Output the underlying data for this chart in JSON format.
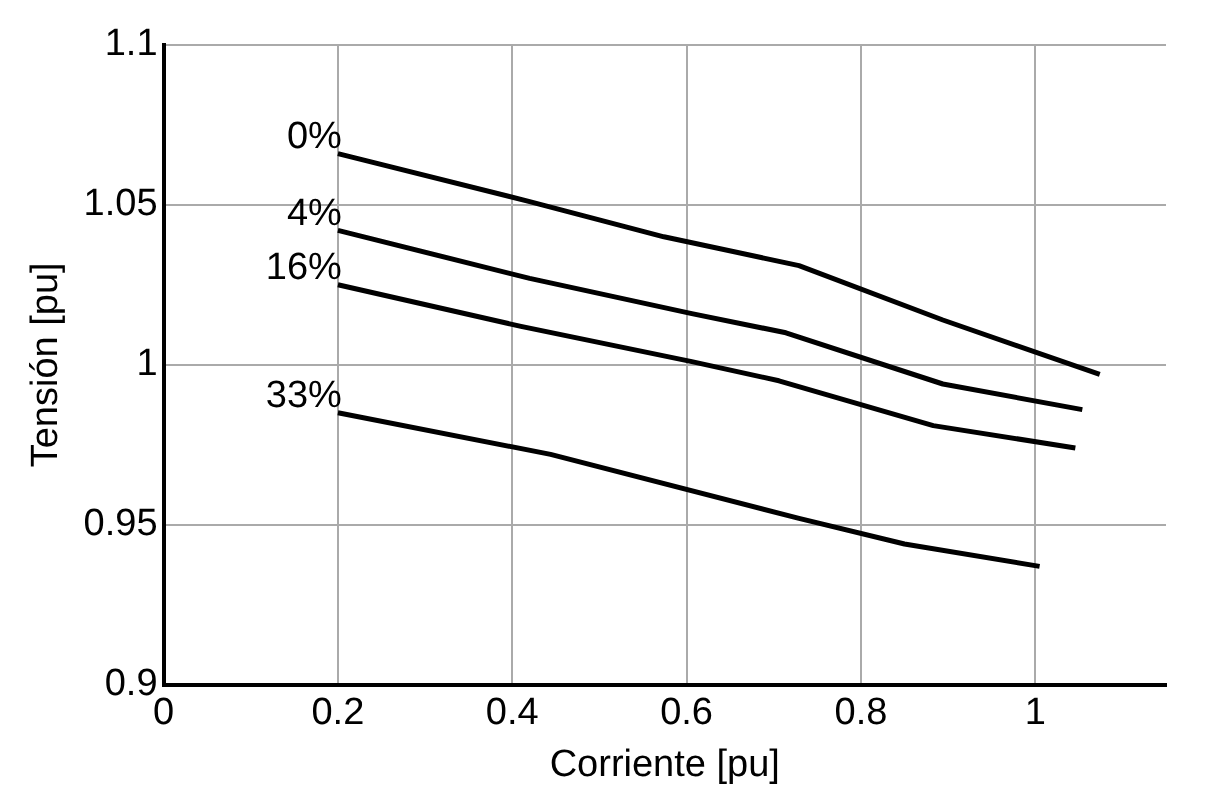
{
  "chart_data": {
    "type": "line",
    "xlabel": "Corriente [pu]",
    "ylabel": "Tensión [pu]",
    "xlim": [
      0,
      1.15
    ],
    "xticks": [
      0,
      0.2,
      0.4,
      0.6,
      0.8,
      1
    ],
    "ylim": [
      0.9,
      1.1
    ],
    "yticks": [
      0.9,
      0.95,
      1,
      1.05,
      1.1
    ],
    "grid": true,
    "legend": false,
    "line_style": "solid",
    "series": [
      {
        "name": "0%",
        "color": "#000000",
        "x": [
          0.2,
          0.42,
          0.574,
          0.729,
          0.894,
          1.074
        ],
        "values": [
          1.066,
          1.051,
          1.04,
          1.031,
          1.014,
          0.997
        ]
      },
      {
        "name": "4%",
        "color": "#000000",
        "x": [
          0.2,
          0.42,
          0.606,
          0.714,
          0.894,
          1.054
        ],
        "values": [
          1.042,
          1.027,
          1.016,
          1.01,
          0.994,
          0.986
        ]
      },
      {
        "name": "16%",
        "color": "#000000",
        "x": [
          0.2,
          0.41,
          0.606,
          0.706,
          0.883,
          1.046
        ],
        "values": [
          1.025,
          1.012,
          1.001,
          0.995,
          0.981,
          0.974
        ]
      },
      {
        "name": "33%",
        "color": "#000000",
        "x": [
          0.2,
          0.444,
          0.729,
          0.85,
          1.005
        ],
        "values": [
          0.985,
          0.972,
          0.952,
          0.944,
          0.937
        ]
      }
    ]
  }
}
